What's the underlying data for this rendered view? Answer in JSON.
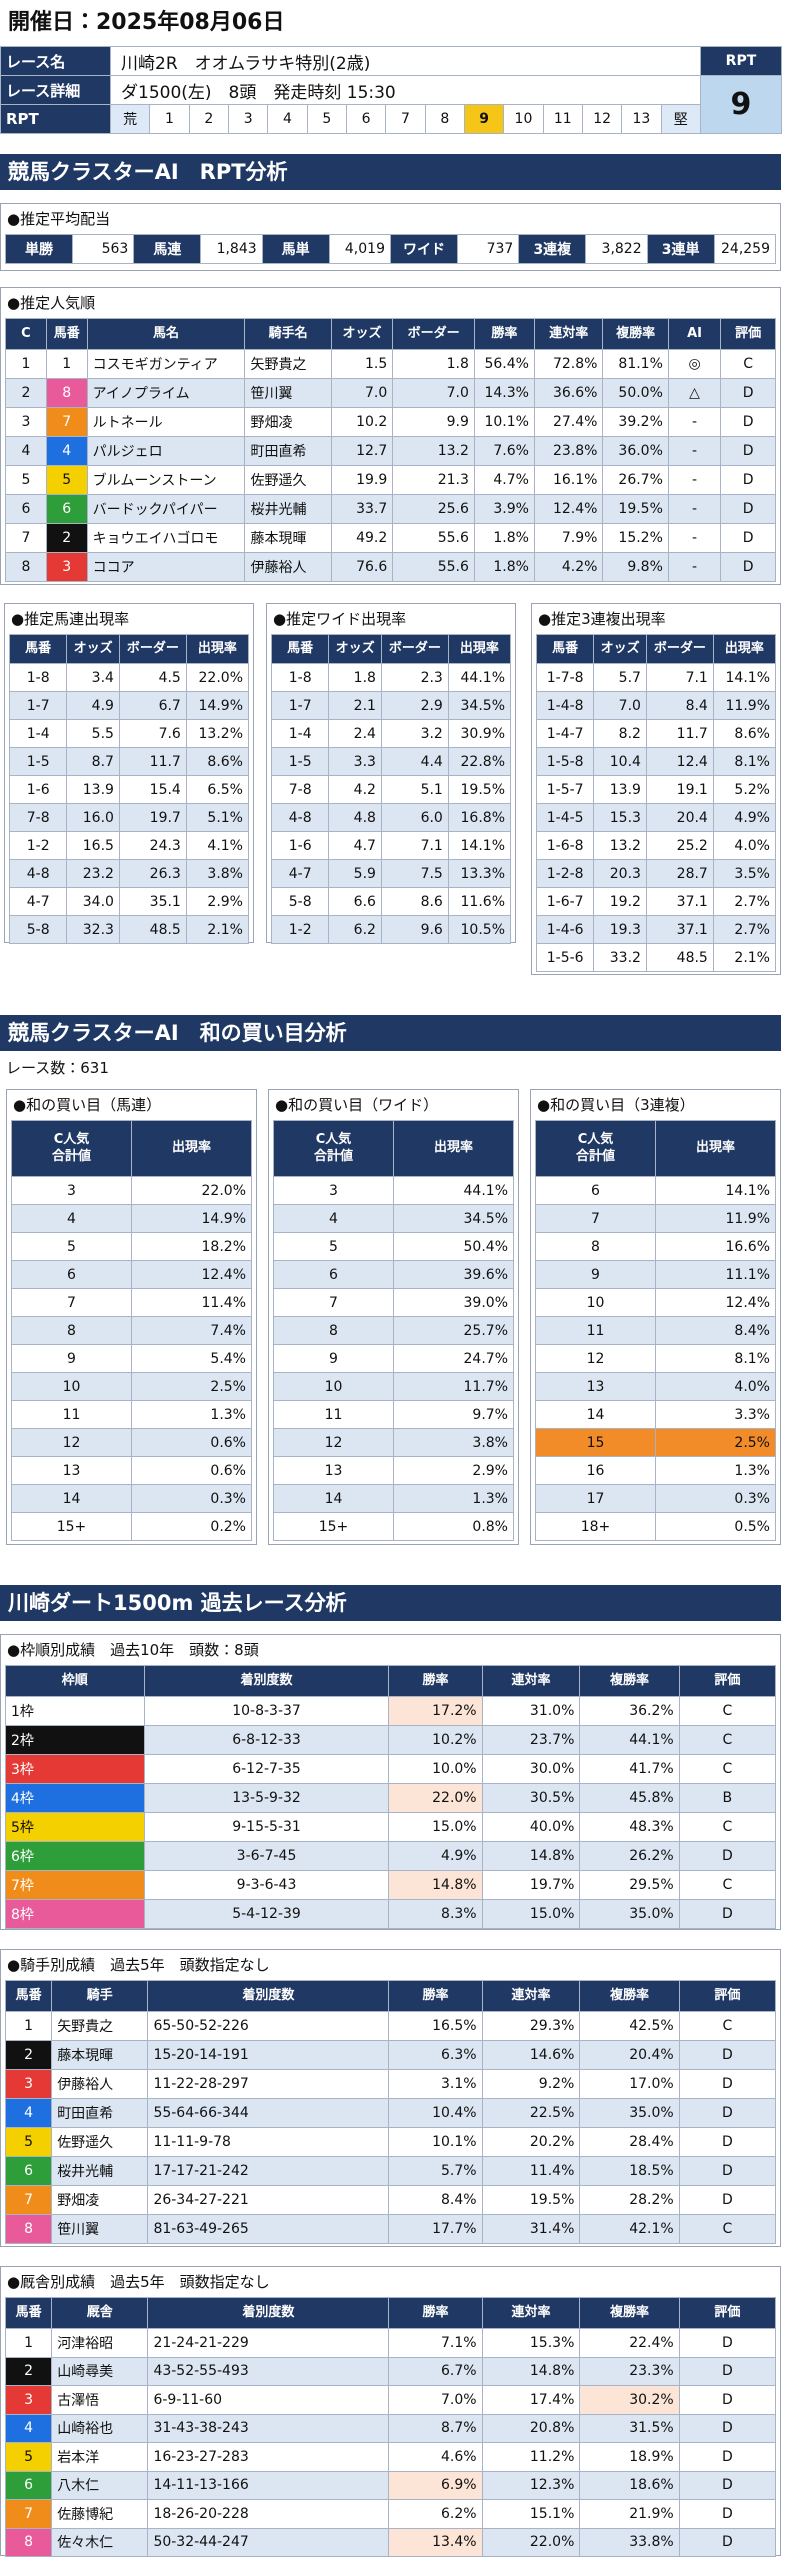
{
  "header": {
    "date": "開催日：2025年08月06日",
    "race_name_label": "レース名",
    "race_name": "川崎2R　オオムラサキ特別(2歳)",
    "detail_label": "レース詳細",
    "detail": "ダ1500(左)　8頭　発走時刻 15:30",
    "rpt_label": "RPT",
    "rpt_value": "9",
    "scale_label": "RPT",
    "scale": [
      "荒",
      "1",
      "2",
      "3",
      "4",
      "5",
      "6",
      "7",
      "8",
      "9",
      "10",
      "11",
      "12",
      "13",
      "堅"
    ]
  },
  "frame_colors": [
    "#ffffff",
    "#111111",
    "#e53935",
    "#1e6fe0",
    "#f5d000",
    "#2e9e3a",
    "#f08c1a",
    "#e85a9a"
  ],
  "section1": {
    "heading": "競馬クラスターAI　RPT分析",
    "payout": {
      "title": "●推定平均配当",
      "items": [
        {
          "label": "単勝",
          "value": "563"
        },
        {
          "label": "馬連",
          "value": "1,843"
        },
        {
          "label": "馬単",
          "value": "4,019"
        },
        {
          "label": "ワイド",
          "value": "737"
        },
        {
          "label": "3連複",
          "value": "3,822"
        },
        {
          "label": "3連単",
          "value": "24,259"
        }
      ]
    },
    "popularity": {
      "title": "●推定人気順",
      "headers": [
        "C",
        "馬番",
        "馬名",
        "騎手名",
        "オッズ",
        "ボーダー",
        "勝率",
        "連対率",
        "複勝率",
        "AI",
        "評価"
      ],
      "frame_color_column": 1,
      "rows": [
        [
          "1",
          "1",
          "コスモギガンティア",
          "矢野貴之",
          "1.5",
          "1.8",
          "56.4%",
          "72.8%",
          "81.1%",
          "◎",
          "C"
        ],
        [
          "2",
          "8",
          "アイノプライム",
          "笹川翼",
          "7.0",
          "7.0",
          "14.3%",
          "36.6%",
          "50.0%",
          "△",
          "D"
        ],
        [
          "3",
          "7",
          "ルトネール",
          "野畑凌",
          "10.2",
          "9.9",
          "10.1%",
          "27.4%",
          "39.2%",
          "-",
          "D"
        ],
        [
          "4",
          "4",
          "パルジェロ",
          "町田直希",
          "12.7",
          "13.2",
          "7.6%",
          "23.8%",
          "36.0%",
          "-",
          "D"
        ],
        [
          "5",
          "5",
          "ブルムーンストーン",
          "佐野遥久",
          "19.9",
          "21.3",
          "4.7%",
          "16.1%",
          "26.7%",
          "-",
          "D"
        ],
        [
          "6",
          "6",
          "バードックパイパー",
          "桜井光輔",
          "33.7",
          "25.6",
          "3.9%",
          "12.4%",
          "19.5%",
          "-",
          "D"
        ],
        [
          "7",
          "2",
          "キョウエイハゴロモ",
          "藤本現暉",
          "49.2",
          "55.6",
          "1.8%",
          "7.9%",
          "15.2%",
          "-",
          "D"
        ],
        [
          "8",
          "3",
          "ココア",
          "伊藤裕人",
          "76.6",
          "55.6",
          "1.8%",
          "4.2%",
          "9.8%",
          "-",
          "D"
        ]
      ]
    },
    "quinella": {
      "title": "●推定馬連出現率",
      "headers": [
        "馬番",
        "オッズ",
        "ボーダー",
        "出現率"
      ],
      "rows": [
        [
          "1-8",
          "3.4",
          "4.5",
          "22.0%"
        ],
        [
          "1-7",
          "4.9",
          "6.7",
          "14.9%"
        ],
        [
          "1-4",
          "5.5",
          "7.6",
          "13.2%"
        ],
        [
          "1-5",
          "8.7",
          "11.7",
          "8.6%"
        ],
        [
          "1-6",
          "13.9",
          "15.4",
          "6.5%"
        ],
        [
          "7-8",
          "16.0",
          "19.7",
          "5.1%"
        ],
        [
          "1-2",
          "16.5",
          "24.3",
          "4.1%"
        ],
        [
          "4-8",
          "23.2",
          "26.3",
          "3.8%"
        ],
        [
          "4-7",
          "34.0",
          "35.1",
          "2.9%"
        ],
        [
          "5-8",
          "32.3",
          "48.5",
          "2.1%"
        ]
      ]
    },
    "wide": {
      "title": "●推定ワイド出現率",
      "headers": [
        "馬番",
        "オッズ",
        "ボーダー",
        "出現率"
      ],
      "rows": [
        [
          "1-8",
          "1.8",
          "2.3",
          "44.1%"
        ],
        [
          "1-7",
          "2.1",
          "2.9",
          "34.5%"
        ],
        [
          "1-4",
          "2.4",
          "3.2",
          "30.9%"
        ],
        [
          "1-5",
          "3.3",
          "4.4",
          "22.8%"
        ],
        [
          "7-8",
          "4.2",
          "5.1",
          "19.5%"
        ],
        [
          "4-8",
          "4.8",
          "6.0",
          "16.8%"
        ],
        [
          "1-6",
          "4.7",
          "7.1",
          "14.1%"
        ],
        [
          "4-7",
          "5.9",
          "7.5",
          "13.3%"
        ],
        [
          "5-8",
          "6.6",
          "8.6",
          "11.6%"
        ],
        [
          "1-2",
          "6.2",
          "9.6",
          "10.5%"
        ]
      ]
    },
    "trio": {
      "title": "●推定3連複出現率",
      "headers": [
        "馬番",
        "オッズ",
        "ボーダー",
        "出現率"
      ],
      "rows": [
        [
          "1-7-8",
          "5.7",
          "7.1",
          "14.1%"
        ],
        [
          "1-4-8",
          "7.0",
          "8.4",
          "11.9%"
        ],
        [
          "1-4-7",
          "8.2",
          "11.7",
          "8.6%"
        ],
        [
          "1-5-8",
          "10.4",
          "12.4",
          "8.1%"
        ],
        [
          "1-5-7",
          "13.9",
          "19.1",
          "5.2%"
        ],
        [
          "1-4-5",
          "15.3",
          "20.4",
          "4.9%"
        ],
        [
          "1-6-8",
          "13.2",
          "25.2",
          "4.0%"
        ],
        [
          "1-2-8",
          "20.3",
          "28.7",
          "3.5%"
        ],
        [
          "1-6-7",
          "19.2",
          "37.1",
          "2.7%"
        ],
        [
          "1-4-6",
          "19.3",
          "37.1",
          "2.7%"
        ],
        [
          "1-5-6",
          "33.2",
          "48.5",
          "2.1%"
        ]
      ]
    }
  },
  "section2": {
    "heading": "競馬クラスターAI　和の買い目分析",
    "race_count": "レース数：631",
    "quinella": {
      "title": "●和の買い目（馬連）",
      "headers": [
        "C人気\n合計値",
        "出現率"
      ],
      "rows": [
        [
          "3",
          "22.0%"
        ],
        [
          "4",
          "14.9%"
        ],
        [
          "5",
          "18.2%"
        ],
        [
          "6",
          "12.4%"
        ],
        [
          "7",
          "11.4%"
        ],
        [
          "8",
          "7.4%"
        ],
        [
          "9",
          "5.4%"
        ],
        [
          "10",
          "2.5%"
        ],
        [
          "11",
          "1.3%"
        ],
        [
          "12",
          "0.6%"
        ],
        [
          "13",
          "0.6%"
        ],
        [
          "14",
          "0.3%"
        ],
        [
          "15+",
          "0.2%"
        ]
      ]
    },
    "wide": {
      "title": "●和の買い目（ワイド）",
      "headers": [
        "C人気\n合計値",
        "出現率"
      ],
      "rows": [
        [
          "3",
          "44.1%"
        ],
        [
          "4",
          "34.5%"
        ],
        [
          "5",
          "50.4%"
        ],
        [
          "6",
          "39.6%"
        ],
        [
          "7",
          "39.0%"
        ],
        [
          "8",
          "25.7%"
        ],
        [
          "9",
          "24.7%"
        ],
        [
          "10",
          "11.7%"
        ],
        [
          "11",
          "9.7%"
        ],
        [
          "12",
          "3.8%"
        ],
        [
          "13",
          "2.9%"
        ],
        [
          "14",
          "1.3%"
        ],
        [
          "15+",
          "0.8%"
        ]
      ]
    },
    "trio": {
      "title": "●和の買い目（3連複）",
      "headers": [
        "C人気\n合計値",
        "出現率"
      ],
      "rows": [
        [
          "6",
          "14.1%"
        ],
        [
          "7",
          "11.9%"
        ],
        [
          "8",
          "16.6%"
        ],
        [
          "9",
          "11.1%"
        ],
        [
          "10",
          "12.4%"
        ],
        [
          "11",
          "8.4%"
        ],
        [
          "12",
          "8.1%"
        ],
        [
          "13",
          "4.0%"
        ],
        [
          "14",
          "3.3%"
        ],
        [
          "15",
          "2.5%"
        ],
        [
          "16",
          "1.3%"
        ],
        [
          "17",
          "0.3%"
        ],
        [
          "18+",
          "0.5%"
        ]
      ],
      "highlights": [
        [
          9,
          0
        ],
        [
          9,
          1
        ]
      ],
      "highlight_color": "#f28c28"
    }
  },
  "section3": {
    "heading": "川崎ダート1500m 過去レース分析",
    "frame": {
      "title": "●枠順別成績　過去10年　頭数：8頭",
      "headers": [
        "枠順",
        "着別度数",
        "勝率",
        "連対率",
        "複勝率",
        "評価"
      ],
      "frame_color_column": 0,
      "rows": [
        [
          "1枠",
          "10-8-3-37",
          "17.2%",
          "31.0%",
          "36.2%",
          "C"
        ],
        [
          "2枠",
          "6-8-12-33",
          "10.2%",
          "23.7%",
          "44.1%",
          "C"
        ],
        [
          "3枠",
          "6-12-7-35",
          "10.0%",
          "30.0%",
          "41.7%",
          "C"
        ],
        [
          "4枠",
          "13-5-9-32",
          "22.0%",
          "30.5%",
          "45.8%",
          "B"
        ],
        [
          "5枠",
          "9-15-5-31",
          "15.0%",
          "40.0%",
          "48.3%",
          "C"
        ],
        [
          "6枠",
          "3-6-7-45",
          "4.9%",
          "14.8%",
          "26.2%",
          "D"
        ],
        [
          "7枠",
          "9-3-6-43",
          "14.8%",
          "19.7%",
          "29.5%",
          "C"
        ],
        [
          "8枠",
          "5-4-12-39",
          "8.3%",
          "15.0%",
          "35.0%",
          "D"
        ]
      ],
      "highlights": [
        [
          0,
          2
        ],
        [
          3,
          2
        ],
        [
          6,
          2
        ]
      ],
      "highlight_color": "#fce4d6"
    },
    "jockey": {
      "title": "●騎手別成績　過去5年　頭数指定なし",
      "headers": [
        "馬番",
        "騎手",
        "着別度数",
        "勝率",
        "連対率",
        "複勝率",
        "評価"
      ],
      "frame_color_column": 0,
      "rows": [
        [
          "1",
          "矢野貴之",
          "65-50-52-226",
          "16.5%",
          "29.3%",
          "42.5%",
          "C"
        ],
        [
          "2",
          "藤本現暉",
          "15-20-14-191",
          "6.3%",
          "14.6%",
          "20.4%",
          "D"
        ],
        [
          "3",
          "伊藤裕人",
          "11-22-28-297",
          "3.1%",
          "9.2%",
          "17.0%",
          "D"
        ],
        [
          "4",
          "町田直希",
          "55-64-66-344",
          "10.4%",
          "22.5%",
          "35.0%",
          "D"
        ],
        [
          "5",
          "佐野遥久",
          "11-11-9-78",
          "10.1%",
          "20.2%",
          "28.4%",
          "D"
        ],
        [
          "6",
          "桜井光輔",
          "17-17-21-242",
          "5.7%",
          "11.4%",
          "18.5%",
          "D"
        ],
        [
          "7",
          "野畑凌",
          "26-34-27-221",
          "8.4%",
          "19.5%",
          "28.2%",
          "D"
        ],
        [
          "8",
          "笹川翼",
          "81-63-49-265",
          "17.7%",
          "31.4%",
          "42.1%",
          "C"
        ]
      ]
    },
    "stable": {
      "title": "●厩舎別成績　過去5年　頭数指定なし",
      "headers": [
        "馬番",
        "厩舎",
        "着別度数",
        "勝率",
        "連対率",
        "複勝率",
        "評価"
      ],
      "frame_color_column": 0,
      "rows": [
        [
          "1",
          "河津裕昭",
          "21-24-21-229",
          "7.1%",
          "15.3%",
          "22.4%",
          "D"
        ],
        [
          "2",
          "山崎尋美",
          "43-52-55-493",
          "6.7%",
          "14.8%",
          "23.3%",
          "D"
        ],
        [
          "3",
          "古澤悟",
          "6-9-11-60",
          "7.0%",
          "17.4%",
          "30.2%",
          "D"
        ],
        [
          "4",
          "山崎裕也",
          "31-43-38-243",
          "8.7%",
          "20.8%",
          "31.5%",
          "D"
        ],
        [
          "5",
          "岩本洋",
          "16-23-27-283",
          "4.6%",
          "11.2%",
          "18.9%",
          "D"
        ],
        [
          "6",
          "八木仁",
          "14-11-13-166",
          "6.9%",
          "12.3%",
          "18.6%",
          "D"
        ],
        [
          "7",
          "佐藤博紀",
          "18-26-20-228",
          "6.2%",
          "15.1%",
          "21.9%",
          "D"
        ],
        [
          "8",
          "佐々木仁",
          "50-32-44-247",
          "13.4%",
          "22.0%",
          "33.8%",
          "D"
        ]
      ],
      "highlights": [
        [
          2,
          5
        ],
        [
          5,
          3
        ],
        [
          7,
          3
        ]
      ],
      "highlight_color": "#fce4d6"
    }
  }
}
